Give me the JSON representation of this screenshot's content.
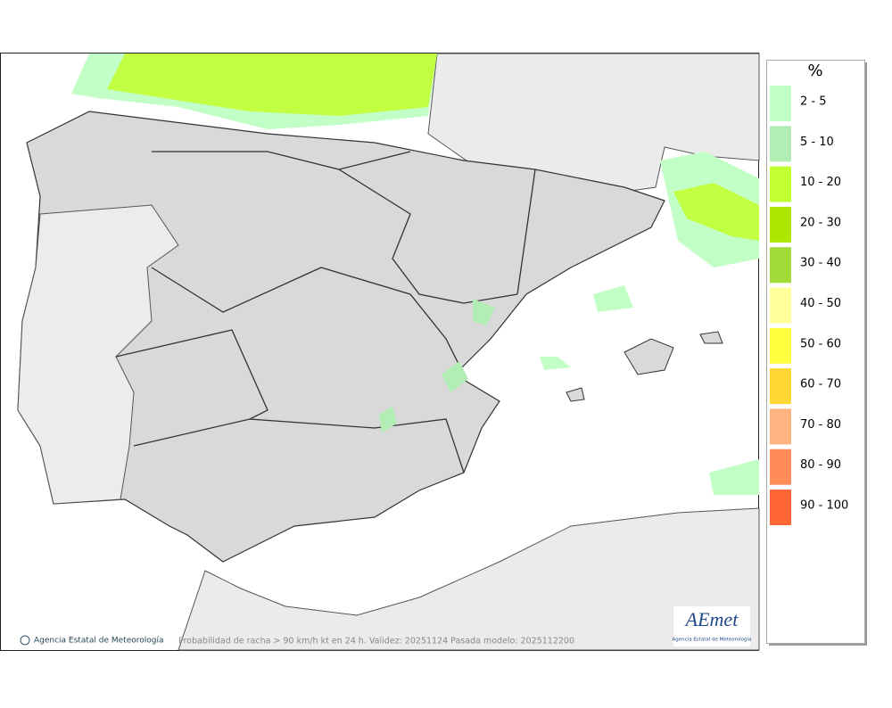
{
  "legend": {
    "title": "%",
    "items": [
      {
        "label": "2 - 5",
        "color": "#c2ffc6"
      },
      {
        "label": "5 - 10",
        "color": "#b3edb6"
      },
      {
        "label": "10 - 20",
        "color": "#c2ff33"
      },
      {
        "label": "20 - 30",
        "color": "#ade600"
      },
      {
        "label": "30 - 40",
        "color": "#a0db38"
      },
      {
        "label": "40 - 50",
        "color": "#ffff99"
      },
      {
        "label": "50 - 60",
        "color": "#ffff40"
      },
      {
        "label": "60 - 70",
        "color": "#ffd633"
      },
      {
        "label": "70 - 80",
        "color": "#ffb380"
      },
      {
        "label": "80 - 90",
        "color": "#ff8c59"
      },
      {
        "label": "90 - 100",
        "color": "#ff6633"
      }
    ]
  },
  "footer": {
    "credit": "Agencia Estatal de Meteorología",
    "caption": "Probabilidad de racha > 90 km/h kt en 24 h. Validez: 20251124 Pasada modelo: 2025112200"
  },
  "logo": {
    "name": "AEmet",
    "subtitle": "Agencia Estatal de Meteorología"
  }
}
